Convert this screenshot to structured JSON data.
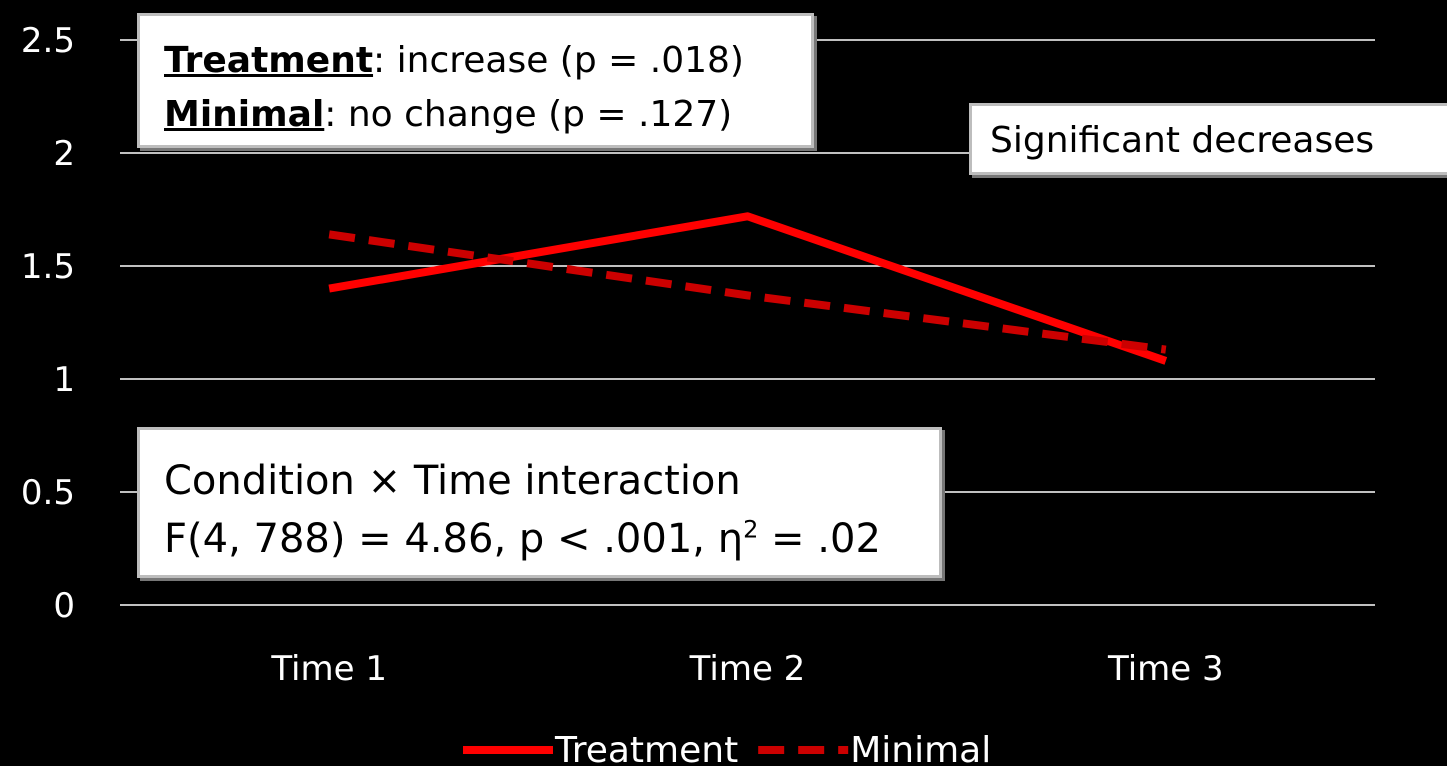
{
  "chart_data": {
    "type": "line",
    "categories": [
      "Time 1",
      "Time 2",
      "Time 3"
    ],
    "series": [
      {
        "name": "Treatment",
        "values": [
          1.4,
          1.72,
          1.08
        ],
        "color": "#ff0000",
        "style": "solid"
      },
      {
        "name": "Minimal",
        "values": [
          1.64,
          1.37,
          1.13
        ],
        "color": "#cc0000",
        "style": "dashed"
      }
    ],
    "yticks": [
      "0",
      "0.5",
      "1",
      "1.5",
      "2",
      "2.5"
    ],
    "ylim": [
      0,
      2.5
    ],
    "grid": true,
    "legend_position": "bottom",
    "annotations": {
      "tests": {
        "treatment_label": "Treatment",
        "treatment_text": ": increase (p = .018)",
        "minimal_label": "Minimal",
        "minimal_text": ": no change (p = .127)"
      },
      "decrease": "Significant decreases",
      "interaction": {
        "line1": "Condition × Time interaction",
        "line2_main": "F(4, 788) = 4.86, p < .001, η",
        "line2_sup": "2",
        "line2_end": " = .02"
      }
    }
  }
}
